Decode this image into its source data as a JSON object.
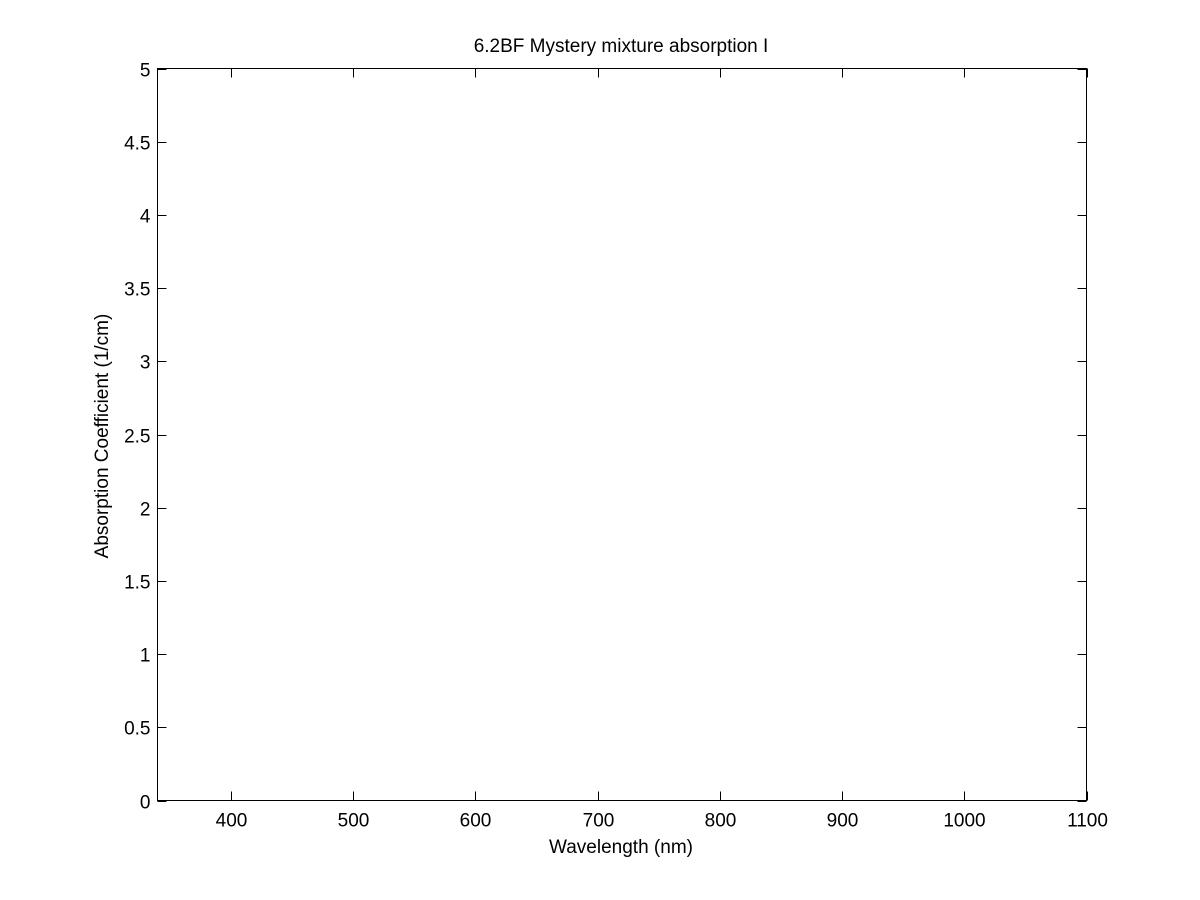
{
  "chart_data": {
    "type": "line",
    "title": "6.2BF Mystery mixture absorption I",
    "xlabel": "Wavelength (nm)",
    "ylabel": "Absorption Coefficient (1/cm)",
    "xlim": [
      340,
      1100
    ],
    "ylim": [
      0,
      5
    ],
    "x_ticks": [
      400,
      500,
      600,
      700,
      800,
      900,
      1000,
      1100
    ],
    "x_tick_labels": [
      "400",
      "500",
      "600",
      "700",
      "800",
      "900",
      "1000",
      "1100"
    ],
    "y_ticks": [
      0,
      0.5,
      1,
      1.5,
      2,
      2.5,
      3,
      3.5,
      4,
      4.5,
      5
    ],
    "y_tick_labels": [
      "0",
      "0.5",
      "1",
      "1.5",
      "2",
      "2.5",
      "3",
      "3.5",
      "4",
      "4.5",
      "5"
    ],
    "series": [],
    "grid": false,
    "background": "#ffffff",
    "axis_color": "#000000"
  }
}
